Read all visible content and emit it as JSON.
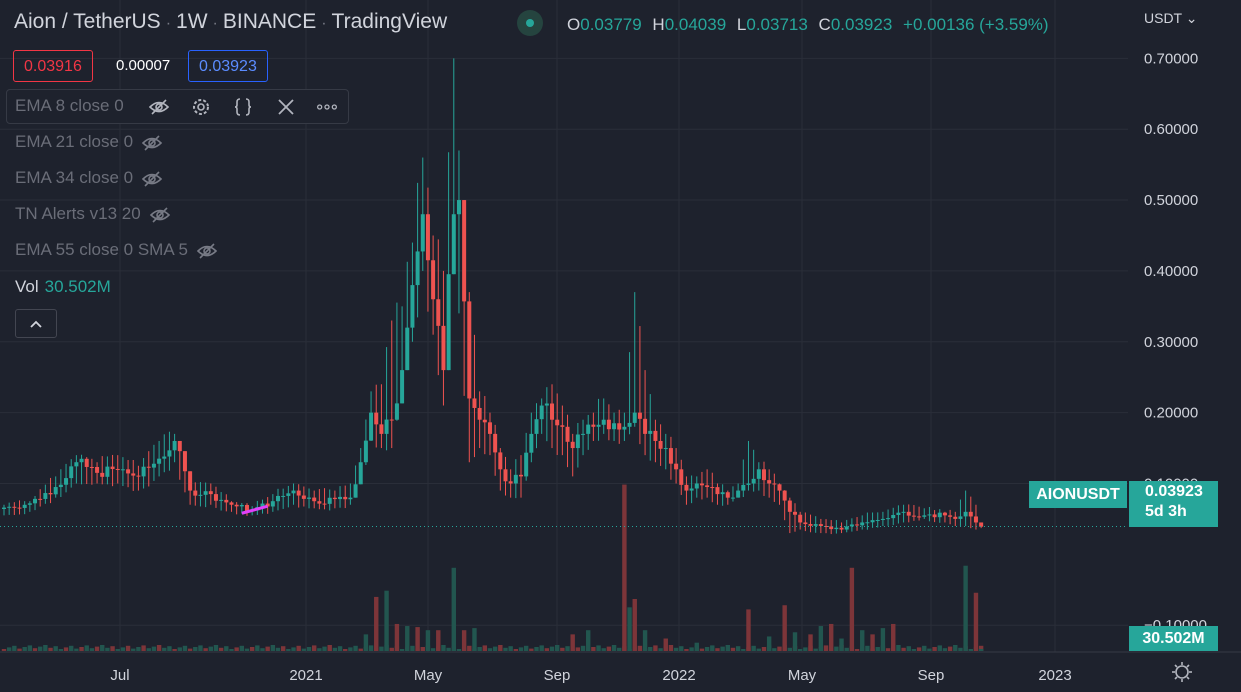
{
  "header": {
    "symbol": "Aion / TetherUS",
    "interval": "1W",
    "exchange": "BINANCE",
    "source": "TradingView",
    "ohlc": {
      "o": "0.03779",
      "h": "0.04039",
      "l": "0.03713",
      "c": "0.03923",
      "change": "+0.00136 (+3.59%)"
    },
    "currency": "USDT"
  },
  "trade": {
    "bid": "0.03916",
    "spread": "0.00007",
    "ask": "0.03923"
  },
  "indicators": [
    {
      "label": "EMA 8 close 0"
    },
    {
      "label": "EMA 21 close 0"
    },
    {
      "label": "EMA 34 close 0"
    },
    {
      "label": "TN Alerts v13 20"
    },
    {
      "label": "EMA 55 close 0 SMA 5"
    }
  ],
  "volume": {
    "label": "Vol",
    "value": "30.502M"
  },
  "price_label": {
    "symbol": "AIONUSDT",
    "price": "0.03923",
    "countdown": "5d 3h"
  },
  "volume_label": "30.502M",
  "icons": {
    "eye": "eye-off-icon",
    "settings": "gear-icon",
    "source": "braces-icon",
    "remove": "close-icon",
    "more": "more-icon",
    "collapse": "chevron-up-icon",
    "reset": "gear-icon"
  },
  "colors": {
    "up": "#26a69a",
    "down": "#ef5350",
    "background": "#1e222d",
    "grid": "#2a2e39",
    "vol_up": "#22564f",
    "vol_down": "#7d3539",
    "ema": "#e040fb"
  },
  "chart_data": {
    "type": "candlestick",
    "interval": "1W",
    "y_axis": {
      "ticks": [
        "0.70000",
        "0.60000",
        "0.50000",
        "0.40000",
        "0.30000",
        "0.20000",
        "0.10000",
        "−0.10000"
      ],
      "range": [
        -0.135,
        0.74
      ]
    },
    "x_axis": {
      "ticks": [
        "Jul",
        "2021",
        "May",
        "Sep",
        "2022",
        "May",
        "Sep",
        "2023"
      ]
    },
    "last_price": 0.03923,
    "anchors": [
      [
        0,
        0.066,
        0.07,
        0.055
      ],
      [
        5,
        0.072,
        0.075,
        0.06
      ],
      [
        10,
        0.095,
        0.11,
        0.08
      ],
      [
        14,
        0.13,
        0.14,
        0.1
      ],
      [
        18,
        0.115,
        0.13,
        0.1
      ],
      [
        22,
        0.12,
        0.14,
        0.1
      ],
      [
        26,
        0.11,
        0.125,
        0.09
      ],
      [
        30,
        0.135,
        0.16,
        0.11
      ],
      [
        33,
        0.16,
        0.17,
        0.13
      ],
      [
        36,
        0.09,
        0.1,
        0.07
      ],
      [
        40,
        0.085,
        0.1,
        0.07
      ],
      [
        44,
        0.07,
        0.075,
        0.06
      ],
      [
        48,
        0.062,
        0.068,
        0.055
      ],
      [
        52,
        0.075,
        0.085,
        0.06
      ],
      [
        56,
        0.09,
        0.1,
        0.07
      ],
      [
        60,
        0.075,
        0.09,
        0.065
      ],
      [
        64,
        0.078,
        0.09,
        0.065
      ],
      [
        67,
        0.08,
        0.1,
        0.07
      ],
      [
        69,
        0.13,
        0.15,
        0.1
      ],
      [
        71,
        0.2,
        0.23,
        0.16
      ],
      [
        73,
        0.17,
        0.24,
        0.15
      ],
      [
        75,
        0.19,
        0.33,
        0.15
      ],
      [
        77,
        0.26,
        0.35,
        0.24
      ],
      [
        79,
        0.38,
        0.44,
        0.3
      ],
      [
        81,
        0.48,
        0.56,
        0.4
      ],
      [
        83,
        0.36,
        0.45,
        0.31
      ],
      [
        85,
        0.26,
        0.4,
        0.21
      ],
      [
        87,
        0.48,
        0.7,
        0.42
      ],
      [
        88,
        0.5,
        0.57,
        0.34
      ],
      [
        90,
        0.22,
        0.37,
        0.13
      ],
      [
        92,
        0.19,
        0.23,
        0.15
      ],
      [
        94,
        0.17,
        0.2,
        0.14
      ],
      [
        96,
        0.12,
        0.15,
        0.09
      ],
      [
        98,
        0.1,
        0.12,
        0.08
      ],
      [
        100,
        0.11,
        0.14,
        0.08
      ],
      [
        102,
        0.17,
        0.2,
        0.13
      ],
      [
        104,
        0.21,
        0.22,
        0.17
      ],
      [
        106,
        0.19,
        0.24,
        0.15
      ],
      [
        108,
        0.18,
        0.21,
        0.14
      ],
      [
        110,
        0.15,
        0.17,
        0.11
      ],
      [
        112,
        0.17,
        0.19,
        0.14
      ],
      [
        114,
        0.18,
        0.2,
        0.16
      ],
      [
        116,
        0.19,
        0.22,
        0.17
      ],
      [
        118,
        0.185,
        0.2,
        0.16
      ],
      [
        120,
        0.18,
        0.2,
        0.16
      ],
      [
        122,
        0.2,
        0.37,
        0.18
      ],
      [
        124,
        0.17,
        0.26,
        0.14
      ],
      [
        126,
        0.16,
        0.19,
        0.13
      ],
      [
        128,
        0.15,
        0.17,
        0.12
      ],
      [
        130,
        0.12,
        0.15,
        0.1
      ],
      [
        132,
        0.09,
        0.11,
        0.07
      ],
      [
        134,
        0.1,
        0.11,
        0.08
      ],
      [
        136,
        0.095,
        0.12,
        0.08
      ],
      [
        138,
        0.085,
        0.1,
        0.07
      ],
      [
        140,
        0.08,
        0.09,
        0.07
      ],
      [
        142,
        0.09,
        0.1,
        0.08
      ],
      [
        144,
        0.1,
        0.16,
        0.09
      ],
      [
        146,
        0.12,
        0.13,
        0.09
      ],
      [
        148,
        0.1,
        0.12,
        0.08
      ],
      [
        150,
        0.09,
        0.1,
        0.07
      ],
      [
        152,
        0.06,
        0.08,
        0.03
      ],
      [
        154,
        0.045,
        0.06,
        0.035
      ],
      [
        158,
        0.04,
        0.05,
        0.03
      ],
      [
        162,
        0.035,
        0.045,
        0.03
      ],
      [
        166,
        0.045,
        0.055,
        0.035
      ],
      [
        170,
        0.05,
        0.06,
        0.04
      ],
      [
        174,
        0.06,
        0.07,
        0.045
      ],
      [
        178,
        0.055,
        0.065,
        0.05
      ],
      [
        182,
        0.055,
        0.06,
        0.045
      ],
      [
        184,
        0.05,
        0.06,
        0.04
      ],
      [
        186,
        0.06,
        0.09,
        0.04
      ],
      [
        188,
        0.045,
        0.07,
        0.035
      ],
      [
        189,
        0.039,
        0.04,
        0.037
      ]
    ],
    "volume_bars": [
      [
        70,
        0.16
      ],
      [
        72,
        0.52
      ],
      [
        74,
        0.58
      ],
      [
        76,
        0.26
      ],
      [
        78,
        0.24
      ],
      [
        80,
        0.23
      ],
      [
        82,
        0.2
      ],
      [
        84,
        0.2
      ],
      [
        87,
        0.8
      ],
      [
        89,
        0.2
      ],
      [
        91,
        0.22
      ],
      [
        110,
        0.16
      ],
      [
        113,
        0.2
      ],
      [
        120,
        1.6
      ],
      [
        121,
        0.42
      ],
      [
        122,
        0.5
      ],
      [
        124,
        0.2
      ],
      [
        128,
        0.12
      ],
      [
        134,
        0.08
      ],
      [
        144,
        0.4
      ],
      [
        148,
        0.14
      ],
      [
        151,
        0.44
      ],
      [
        153,
        0.18
      ],
      [
        156,
        0.16
      ],
      [
        158,
        0.24
      ],
      [
        160,
        0.26
      ],
      [
        162,
        0.12
      ],
      [
        164,
        0.8
      ],
      [
        166,
        0.2
      ],
      [
        168,
        0.16
      ],
      [
        170,
        0.22
      ],
      [
        172,
        0.26
      ],
      [
        186,
        0.82
      ],
      [
        188,
        0.56
      ],
      [
        189,
        0.02
      ]
    ],
    "ema_segment": {
      "from": [
        46,
        0.058
      ],
      "to": [
        51,
        0.068
      ],
      "color": "#e040fb"
    }
  }
}
